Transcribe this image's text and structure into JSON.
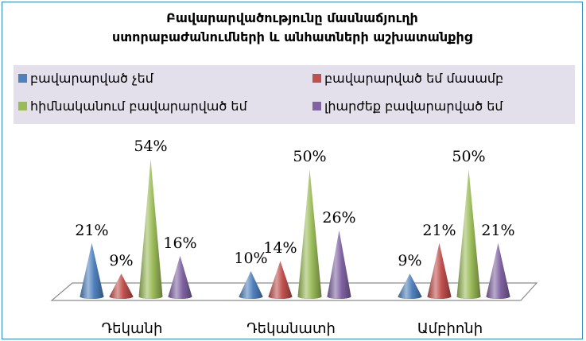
{
  "chart_data": {
    "type": "bar",
    "style": "3d-cone",
    "title_line1": "Բավարարվածությունը մասնաճյուղի",
    "title_line2": "ստորաբաժանումների և անհատների աշխատանքից",
    "categories": [
      "Դեկանի",
      "Դեկանատի",
      "Ամբիոնի"
    ],
    "series": [
      {
        "name": "բավարարված չեմ",
        "color": "#4f81bd",
        "values": [
          21,
          10,
          9
        ]
      },
      {
        "name": "բավարարված եմ մասամբ",
        "color": "#c0504d",
        "values": [
          9,
          14,
          21
        ]
      },
      {
        "name": "հիմնականում բավարարված եմ",
        "color": "#9bbb59",
        "values": [
          54,
          50,
          50
        ]
      },
      {
        "name": "լիարժեք բավարարված եմ",
        "color": "#8064a2",
        "values": [
          16,
          26,
          21
        ]
      }
    ],
    "value_suffix": "%",
    "ylim": [
      0,
      55
    ],
    "legend_position": "top",
    "grid": false
  }
}
